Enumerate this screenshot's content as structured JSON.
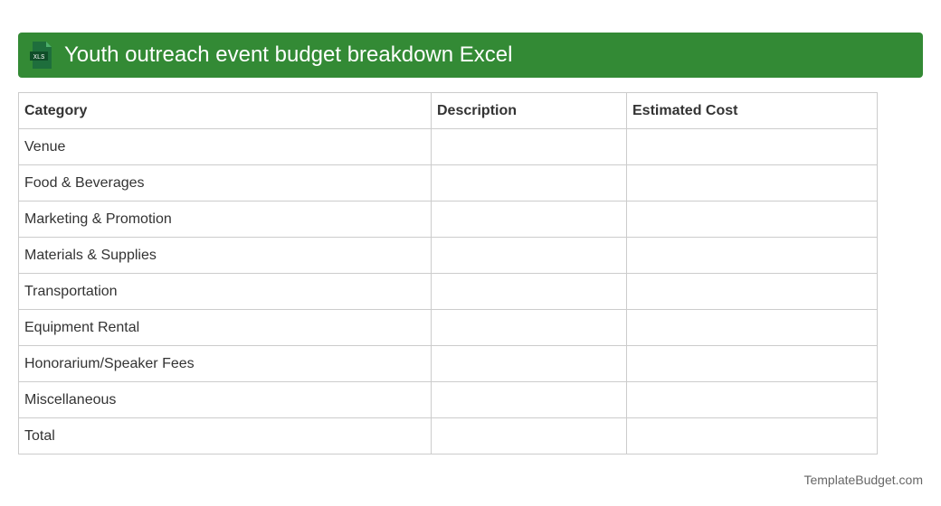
{
  "header": {
    "title": "Youth outreach event budget breakdown Excel",
    "icon": "xls-file-icon",
    "icon_text": "XLS",
    "color": "#338a35"
  },
  "table": {
    "columns": [
      "Category",
      "Description",
      "Estimated Cost"
    ],
    "rows": [
      [
        "Venue",
        "",
        ""
      ],
      [
        "Food & Beverages",
        "",
        ""
      ],
      [
        "Marketing & Promotion",
        "",
        ""
      ],
      [
        "Materials & Supplies",
        "",
        ""
      ],
      [
        "Transportation",
        "",
        ""
      ],
      [
        "Equipment Rental",
        "",
        ""
      ],
      [
        "Honorarium/Speaker Fees",
        "",
        ""
      ],
      [
        "Miscellaneous",
        "",
        ""
      ],
      [
        "Total",
        "",
        ""
      ]
    ]
  },
  "footer": {
    "text": "TemplateBudget.com"
  }
}
